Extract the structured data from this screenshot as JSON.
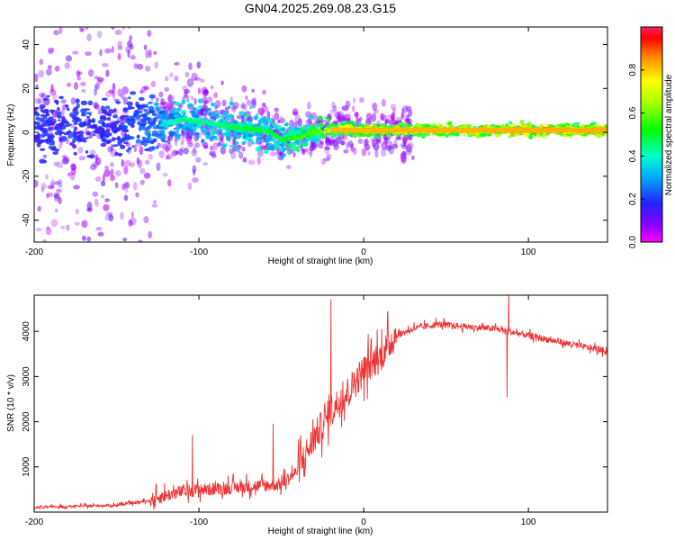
{
  "title": "GN04.2025.269.08.23.G15",
  "chart_data": [
    {
      "type": "heatmap",
      "name": "spectrogram",
      "xlabel": "Height of straight line (km)",
      "ylabel": "Frequency (Hz)",
      "xlim": [
        -200,
        148
      ],
      "ylim": [
        -50,
        48
      ],
      "xticks": [
        -200,
        -100,
        0,
        100
      ],
      "yticks": [
        -40,
        -20,
        0,
        20,
        40
      ],
      "colorbar": {
        "label": "Normalized spectral amplitude",
        "range": [
          0,
          1
        ],
        "ticks": [
          0.0,
          0.2,
          0.4,
          0.6,
          0.8
        ]
      },
      "center_track": {
        "description_x": [
          -200,
          -150,
          -125,
          -110,
          -90,
          -75,
          -60,
          -50,
          -40,
          -30,
          -20,
          -10,
          0,
          20,
          60,
          100,
          148
        ],
        "frequency": [
          2,
          2,
          3,
          6,
          4,
          2,
          1,
          -3,
          -2,
          0,
          1,
          2,
          1,
          1,
          1,
          1,
          1
        ],
        "amplitude": [
          0.25,
          0.25,
          0.35,
          0.45,
          0.45,
          0.5,
          0.5,
          0.5,
          0.55,
          0.6,
          0.7,
          0.75,
          0.8,
          0.8,
          0.8,
          0.85,
          0.85
        ]
      }
    },
    {
      "type": "line",
      "name": "snr",
      "xlabel": "Height of straight line (km)",
      "ylabel": "SNR (10 * v/v)",
      "xlim": [
        -200,
        148
      ],
      "ylim": [
        0,
        4800
      ],
      "xticks": [
        -200,
        -100,
        0,
        100
      ],
      "yticks": [
        1000,
        2000,
        3000,
        4000
      ],
      "color": "#ee3333",
      "envelope_x": [
        -200,
        -150,
        -130,
        -110,
        -90,
        -70,
        -50,
        -40,
        -30,
        -20,
        -10,
        0,
        10,
        20,
        30,
        45,
        60,
        80,
        100,
        120,
        148
      ],
      "envelope_y": [
        100,
        150,
        250,
        450,
        500,
        550,
        600,
        900,
        1600,
        2200,
        2600,
        3100,
        3400,
        3900,
        4050,
        4150,
        4100,
        4050,
        3900,
        3750,
        3550
      ],
      "spikes": [
        {
          "x": -20,
          "y": 4700
        },
        {
          "x": 88,
          "y": 4900
        },
        {
          "x": 87,
          "y": 2550
        },
        {
          "x": -104,
          "y": 1700
        },
        {
          "x": -55,
          "y": 1950
        }
      ]
    }
  ]
}
